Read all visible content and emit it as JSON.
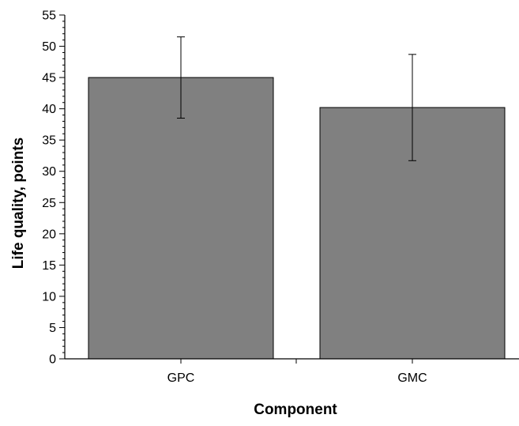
{
  "chart_data": {
    "type": "bar",
    "categories": [
      "GPC",
      "GMC"
    ],
    "values": [
      45.0,
      40.2
    ],
    "error_low": [
      38.5,
      31.7
    ],
    "error_high": [
      51.5,
      48.7
    ],
    "xlabel": "Component",
    "ylabel": "Life quality, points",
    "ylim": [
      0,
      55
    ],
    "y_major_ticks": [
      0,
      5,
      10,
      15,
      20,
      25,
      30,
      35,
      40,
      45,
      50,
      55
    ],
    "y_minor_step": 1,
    "grid": false,
    "legend": "none",
    "bar_color": "#808080",
    "edge_color": "#000000"
  }
}
